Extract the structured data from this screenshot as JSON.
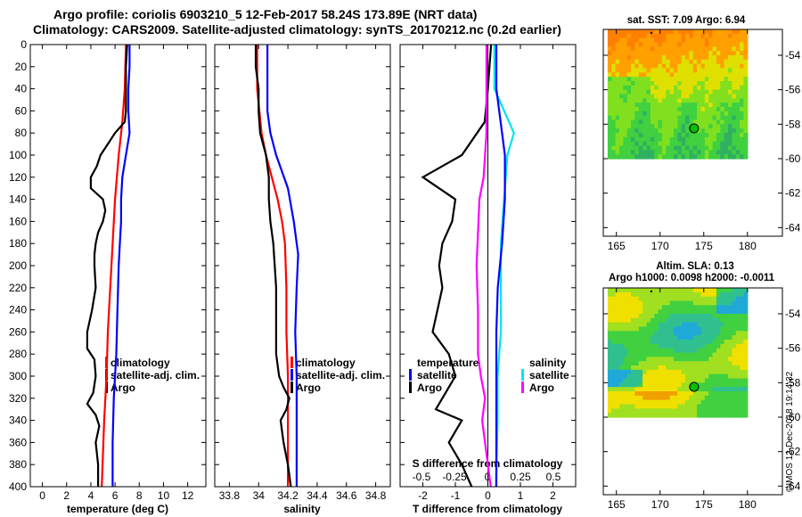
{
  "figure": {
    "title_line1": "Argo profile: coriolis 6903210_5 12-Feb-2017 58.24S 173.89E (NRT data)",
    "title_line2": "Climatology: CARS2009. Satellite-adjusted climatology: synTS_20170212.nc (0.2d earlier)",
    "credit": "©IMOS 12-Dec-2018 19:14:32"
  },
  "colors": {
    "climatology": "#ff0000",
    "satellite": "#0000ff",
    "argo": "#000000",
    "temp_diff": "#00e5ee",
    "sal_diff": "#ff00ff",
    "float_marker": "#00c000"
  },
  "chart_data": [
    {
      "id": "temperature",
      "type": "line",
      "xlabel": "temperature (deg C)",
      "xlim": [
        -1,
        13.5
      ],
      "xticks": [
        0,
        2,
        4,
        6,
        8,
        10,
        12
      ],
      "ylim": [
        0,
        400
      ],
      "yticks": [
        0,
        20,
        40,
        60,
        80,
        100,
        120,
        140,
        160,
        180,
        200,
        220,
        240,
        260,
        280,
        300,
        320,
        340,
        360,
        380,
        400
      ],
      "legend": [
        "climatology",
        "satellite-adj. clim.",
        "Argo"
      ],
      "series": [
        {
          "name": "climatology",
          "color_key": "climatology",
          "depth": [
            0,
            40,
            70,
            100,
            140,
            180,
            220,
            260,
            300,
            340,
            400
          ],
          "values": [
            6.9,
            6.8,
            6.6,
            6.3,
            6.0,
            5.8,
            5.6,
            5.4,
            5.3,
            5.1,
            4.9
          ]
        },
        {
          "name": "satellite-adj. clim.",
          "color_key": "satellite",
          "depth": [
            0,
            20,
            40,
            60,
            80,
            100,
            120,
            140,
            160,
            180,
            200,
            240,
            280,
            320,
            360,
            400
          ],
          "values": [
            7.2,
            7.2,
            7.1,
            7.1,
            7.2,
            6.9,
            6.6,
            6.5,
            6.5,
            6.4,
            6.3,
            6.2,
            6.1,
            5.9,
            5.8,
            5.8
          ]
        },
        {
          "name": "Argo",
          "color_key": "argo",
          "depth": [
            0,
            20,
            40,
            60,
            70,
            80,
            90,
            100,
            110,
            120,
            130,
            140,
            150,
            160,
            170,
            180,
            190,
            200,
            220,
            240,
            260,
            275,
            285,
            300,
            315,
            325,
            335,
            345,
            360,
            380,
            400
          ],
          "values": [
            7.0,
            6.9,
            6.9,
            6.9,
            6.8,
            6.0,
            5.4,
            4.8,
            4.5,
            4.0,
            4.0,
            5.0,
            5.2,
            5.0,
            4.6,
            4.4,
            4.3,
            4.3,
            4.4,
            4.1,
            3.7,
            3.7,
            4.3,
            4.4,
            4.2,
            3.7,
            4.4,
            4.7,
            4.4,
            4.6,
            4.6
          ]
        }
      ]
    },
    {
      "id": "salinity",
      "type": "line",
      "xlabel": "salinity",
      "xlim": [
        33.7,
        34.9
      ],
      "xticks": [
        33.8,
        34,
        34.2,
        34.4,
        34.6,
        34.8
      ],
      "xtick_labels": [
        "33.8",
        "34",
        "34.2",
        "34.4",
        "34.6",
        "34.8"
      ],
      "ylim": [
        0,
        400
      ],
      "legend": [
        "climatology",
        "satellite-adj. clim.",
        "Argo"
      ],
      "series": [
        {
          "name": "climatology",
          "color_key": "climatology",
          "depth": [
            0,
            40,
            80,
            100,
            120,
            140,
            160,
            180,
            220,
            260,
            300,
            360,
            400
          ],
          "values": [
            33.99,
            33.99,
            34.02,
            34.05,
            34.09,
            34.13,
            34.16,
            34.18,
            34.19,
            34.19,
            34.2,
            34.2,
            34.2
          ]
        },
        {
          "name": "satellite-adj. clim.",
          "color_key": "satellite",
          "depth": [
            0,
            60,
            80,
            100,
            130,
            160,
            190,
            220,
            260,
            300,
            340,
            400
          ],
          "values": [
            34.06,
            34.06,
            34.08,
            34.12,
            34.2,
            34.24,
            34.27,
            34.26,
            34.25,
            34.26,
            34.26,
            34.26
          ]
        },
        {
          "name": "Argo",
          "color_key": "argo",
          "depth": [
            0,
            20,
            40,
            60,
            80,
            100,
            120,
            140,
            160,
            180,
            200,
            220,
            240,
            260,
            280,
            300,
            310,
            320,
            330,
            340,
            360,
            380,
            400
          ],
          "values": [
            33.98,
            33.98,
            34.0,
            34.0,
            34.01,
            34.05,
            34.07,
            34.07,
            34.08,
            34.1,
            34.11,
            34.12,
            34.12,
            34.12,
            34.12,
            34.14,
            34.17,
            34.21,
            34.19,
            34.15,
            34.17,
            34.2,
            34.22
          ]
        }
      ]
    },
    {
      "id": "difference",
      "type": "line",
      "xlabel": "T difference from climatology",
      "xlim": [
        -2.7,
        2.7
      ],
      "xticks": [
        -2,
        -1,
        0,
        1,
        2
      ],
      "ylim": [
        0,
        400
      ],
      "secondary_axis_label": "S difference from climatology",
      "secondary_ticks": [
        "-0.5",
        "-0.25",
        "0",
        "0.25",
        "0.5"
      ],
      "legend_temperature": {
        "title": "temperature",
        "items": [
          "satellite",
          "Argo"
        ]
      },
      "legend_salinity": {
        "title": "salinity",
        "items": [
          "satellite",
          "Argo"
        ]
      },
      "series": [
        {
          "name": "T satellite",
          "color_key": "temp_diff",
          "depth": [
            0,
            40,
            80,
            100,
            140,
            180,
            220,
            260,
            300,
            340,
            400
          ],
          "values": [
            0.2,
            0.2,
            0.8,
            0.6,
            0.5,
            0.4,
            0.4,
            0.4,
            0.3,
            0.3,
            0.25
          ]
        },
        {
          "name": "T Argo",
          "color_key": "argo",
          "depth": [
            0,
            40,
            70,
            100,
            120,
            140,
            160,
            180,
            200,
            220,
            260,
            280,
            300,
            320,
            330,
            340,
            360,
            380,
            400
          ],
          "values": [
            0.1,
            0.0,
            -0.1,
            -0.8,
            -2.0,
            -1.0,
            -1.1,
            -1.4,
            -1.5,
            -1.4,
            -1.7,
            -1.2,
            -1.0,
            -1.4,
            -1.6,
            -0.8,
            -1.2,
            -0.8,
            -0.5
          ]
        },
        {
          "name": "S satellite",
          "color_key": "satellite",
          "depth": [
            0,
            40,
            80,
            100,
            140,
            180,
            220,
            260,
            300,
            340,
            400
          ],
          "values": [
            0.06,
            0.06,
            0.1,
            0.12,
            0.12,
            0.1,
            0.07,
            0.06,
            0.06,
            0.06,
            0.06
          ]
        },
        {
          "name": "S Argo",
          "color_key": "sal_diff",
          "depth": [
            0,
            40,
            80,
            120,
            140,
            170,
            200,
            240,
            280,
            300,
            320,
            340,
            360,
            400
          ],
          "values": [
            -0.01,
            -0.01,
            -0.01,
            -0.03,
            -0.06,
            -0.07,
            -0.08,
            -0.07,
            -0.07,
            -0.05,
            -0.02,
            -0.04,
            -0.02,
            0.02
          ]
        }
      ]
    },
    {
      "id": "sst_map",
      "type": "heatmap",
      "title": "sat. SST: 7.09 Argo: 6.94",
      "xticks": [
        165,
        170,
        175,
        180
      ],
      "yticks": [
        -54,
        -56,
        -58,
        -60,
        -62,
        -64
      ],
      "xlim": [
        163.5,
        184
      ],
      "ylim": [
        -64.5,
        -52.5
      ],
      "data_extent": {
        "lon": [
          164,
          180
        ],
        "lat": [
          -60,
          -52.5
        ]
      },
      "float_position": {
        "lon": 173.89,
        "lat": -58.24
      },
      "palette": [
        "#30b060",
        "#40d040",
        "#80e020",
        "#e0e000",
        "#ffa000",
        "#ff8000"
      ]
    },
    {
      "id": "sla_map",
      "type": "heatmap",
      "title": "Altim. SLA: 0.13",
      "subtitle": "Argo h1000: 0.0098 h2000: -0.0011",
      "xticks": [
        165,
        170,
        175,
        180
      ],
      "yticks": [
        -54,
        -56,
        -58,
        -60,
        -62,
        -64
      ],
      "xlim": [
        163.5,
        184
      ],
      "ylim": [
        -64.5,
        -52.5
      ],
      "data_extent": {
        "lon": [
          164,
          180
        ],
        "lat": [
          -60,
          -52.5
        ]
      },
      "float_position": {
        "lon": 173.89,
        "lat": -58.24
      },
      "palette": [
        "#20a8d8",
        "#30c090",
        "#40d040",
        "#a0e020",
        "#f0e000",
        "#f0a000"
      ]
    }
  ]
}
